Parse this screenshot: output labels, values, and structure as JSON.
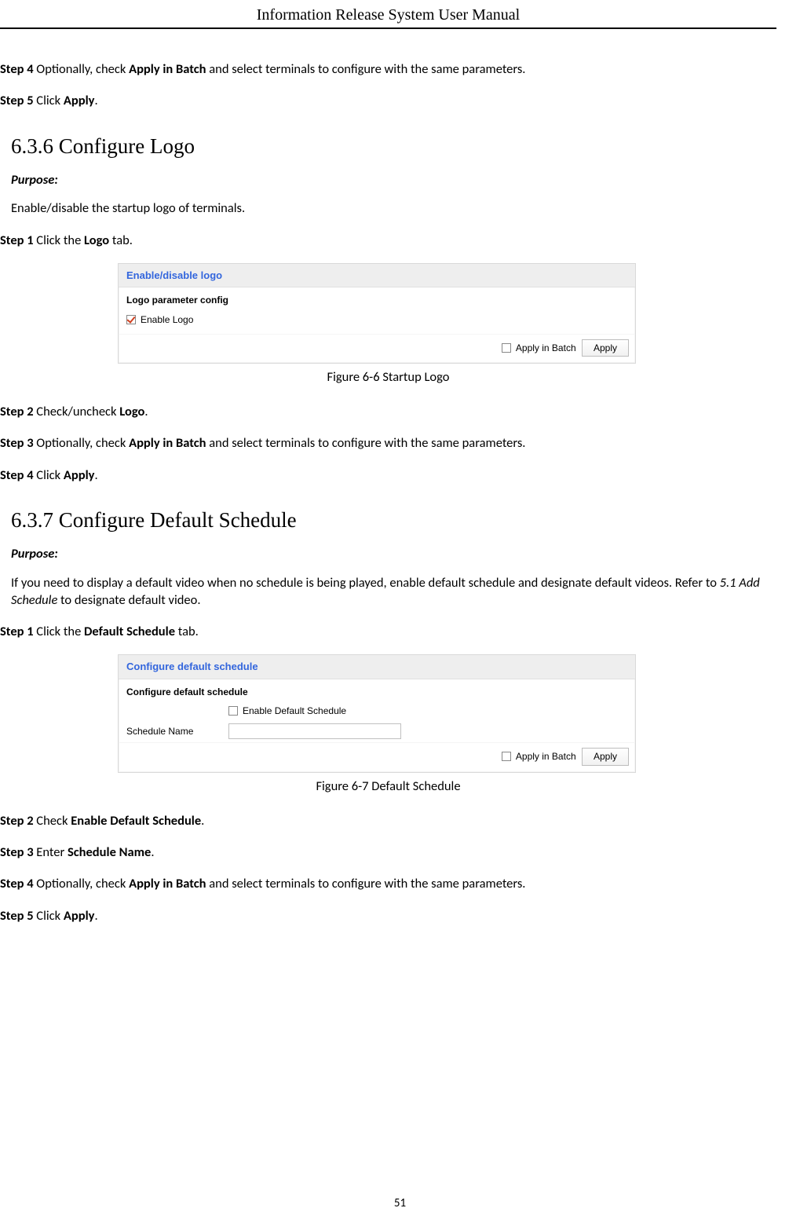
{
  "header": {
    "title": "Information Release System User Manual"
  },
  "introSteps": {
    "step4": {
      "label": "Step 4",
      "pre": " Optionally, check ",
      "bold1": "Apply in Batch",
      "post": " and select terminals to configure with the same parameters."
    },
    "step5": {
      "label": "Step 5",
      "pre": " Click ",
      "bold1": "Apply",
      "post": "."
    }
  },
  "sec636": {
    "heading": "6.3.6 Configure Logo",
    "purposeLabel": "Purpose:",
    "purposeBody": "Enable/disable the startup logo of terminals.",
    "step1": {
      "label": "Step 1",
      "pre": " Click the ",
      "bold1": "Logo",
      "post": " tab."
    },
    "figure": {
      "panelTitle": "Enable/disable logo",
      "panelSub": "Logo parameter config",
      "checkboxLabel": "Enable Logo",
      "applyInBatch": "Apply in Batch",
      "applyBtn": "Apply",
      "caption": "Figure 6-6 Startup Logo",
      "enableChecked": true,
      "batchChecked": false,
      "colors": {
        "titleBg": "#eeeeee",
        "titleColor": "#3366dd",
        "border": "#d9d9d9",
        "btnBorder": "#bdbdbd",
        "checkMark": "#d04020"
      }
    },
    "step2": {
      "label": "Step 2",
      "pre": " Check/uncheck ",
      "bold1": "Logo",
      "post": "."
    },
    "step3": {
      "label": "Step 3",
      "pre": " Optionally, check ",
      "bold1": "Apply in Batch",
      "post": " and select terminals to configure with the same parameters."
    },
    "step4": {
      "label": "Step 4",
      "pre": " Click ",
      "bold1": "Apply",
      "post": "."
    }
  },
  "sec637": {
    "heading": "6.3.7 Configure Default Schedule",
    "purposeLabel": "Purpose:",
    "purposeBody1": "If you need to display a default video when no schedule is being played, enable default schedule and designate default videos. Refer to ",
    "purposeRef": "5.1 Add Schedule",
    "purposeBody2": " to designate default video.",
    "step1": {
      "label": "Step 1",
      "pre": " Click the ",
      "bold1": "Default Schedule",
      "post": " tab."
    },
    "figure": {
      "panelTitle": "Configure default schedule",
      "panelSub": "Configure default schedule",
      "enableLabel": "Enable Default Schedule",
      "scheduleNameLabel": "Schedule Name",
      "scheduleNameValue": "",
      "applyInBatch": "Apply in Batch",
      "applyBtn": "Apply",
      "caption": "Figure 6-7 Default Schedule",
      "enableChecked": false,
      "batchChecked": false,
      "colors": {
        "titleBg": "#eeeeee",
        "titleColor": "#3366dd",
        "border": "#d9d9d9",
        "inputBorder": "#c0c0c0"
      }
    },
    "step2": {
      "label": "Step 2",
      "pre": " Check ",
      "bold1": "Enable Default Schedule",
      "post": "."
    },
    "step3": {
      "label": "Step 3",
      "pre": " Enter ",
      "bold1": "Schedule Name",
      "post": "."
    },
    "step4": {
      "label": "Step 4",
      "pre": " Optionally, check ",
      "bold1": "Apply in Batch",
      "post": " and select terminals to configure with the same parameters."
    },
    "step5": {
      "label": "Step 5",
      "pre": " Click ",
      "bold1": "Apply",
      "post": "."
    }
  },
  "pageNumber": "51"
}
